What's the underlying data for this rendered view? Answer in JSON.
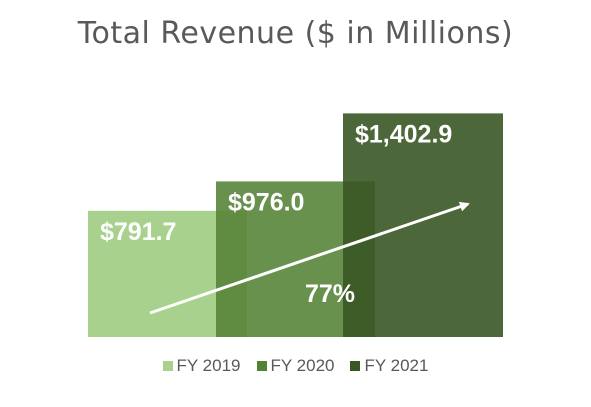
{
  "chart_data": {
    "type": "bar",
    "title": "Total Revenue ($ in Millions)",
    "categories": [
      "FY 2019",
      "FY 2020",
      "FY 2021"
    ],
    "values": [
      791.7,
      976.0,
      1402.9
    ],
    "data_labels": [
      "$791.7",
      "$976.0",
      "$1,402.9"
    ],
    "colors": [
      "#a9d18e",
      "#548235",
      "#385723"
    ],
    "annotation": "77%",
    "arrow": "up-right trend arrow across bars",
    "legend_position": "bottom",
    "grid": false,
    "ylim": [
      0,
      1550
    ]
  }
}
